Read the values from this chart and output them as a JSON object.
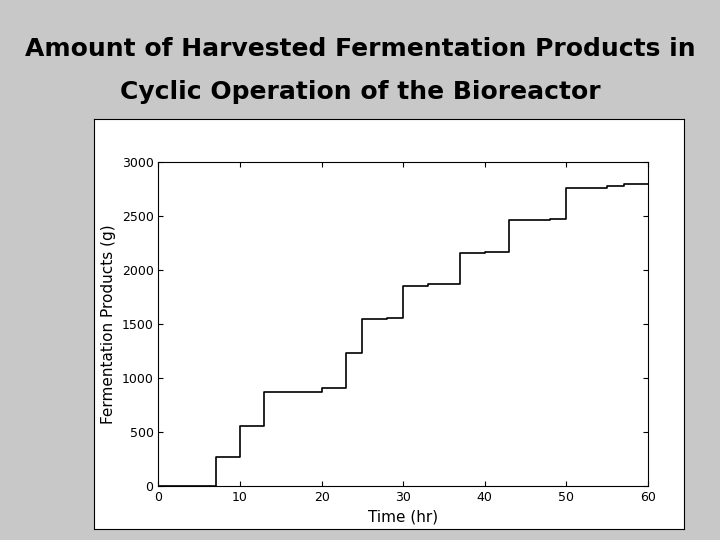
{
  "title_line1": "Amount of Harvested Fermentation Products in",
  "title_line2": "Cyclic Operation of the Bioreactor",
  "xlabel": "Time (hr)",
  "ylabel": "Fermentation Products (g)",
  "xlim": [
    0,
    60
  ],
  "ylim": [
    0,
    3000
  ],
  "xticks": [
    0,
    10,
    20,
    30,
    40,
    50,
    60
  ],
  "yticks": [
    0,
    500,
    1000,
    1500,
    2000,
    2500,
    3000
  ],
  "background_color": "#c8c8c8",
  "plot_bg_color": "#ffffff",
  "outer_box_color": "#ffffff",
  "line_color": "#000000",
  "line_width": 1.2,
  "time_points": [
    0,
    7,
    7,
    10,
    10,
    13,
    13,
    20,
    20,
    23,
    23,
    25,
    25,
    28,
    28,
    30,
    30,
    33,
    33,
    37,
    37,
    40,
    40,
    43,
    43,
    48,
    48,
    50,
    50,
    55,
    55,
    57,
    57,
    60
  ],
  "product_points": [
    0,
    0,
    270,
    270,
    560,
    560,
    870,
    870,
    910,
    910,
    1230,
    1230,
    1550,
    1550,
    1560,
    1560,
    1850,
    1850,
    1870,
    1870,
    2160,
    2160,
    2170,
    2170,
    2460,
    2460,
    2470,
    2470,
    2760,
    2760,
    2780,
    2780,
    2800,
    2800
  ],
  "title_fontsize": 18,
  "tick_fontsize": 9,
  "label_fontsize": 11
}
